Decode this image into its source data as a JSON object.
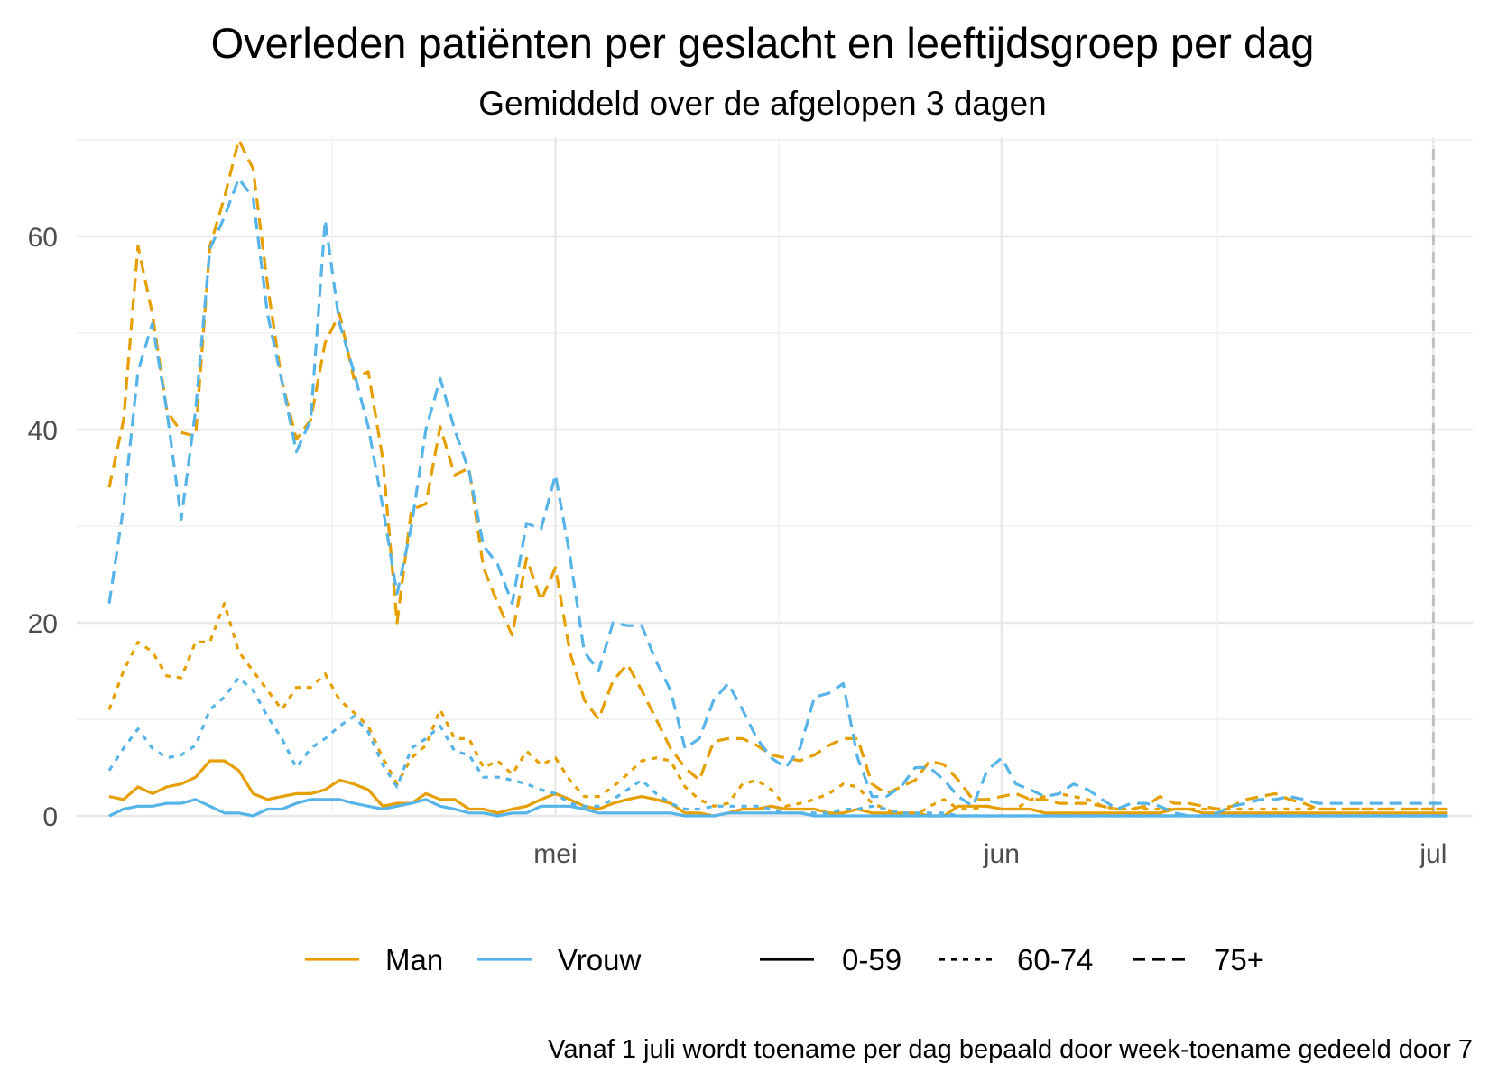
{
  "chart_data": {
    "type": "line",
    "title": "Overleden patiënten per geslacht en leeftijdsgroep per dag",
    "subtitle": "Gemiddeld over de afgelopen 3 dagen",
    "caption": "Vanaf 1 juli wordt toename per dag bepaald door week-toename gedeeld door 7",
    "x_start": "2020-03-31",
    "x_end": "2020-07-06",
    "x_ticks": [
      {
        "label": "mei",
        "date": "2020-05-01"
      },
      {
        "label": "jun",
        "date": "2020-06-01"
      },
      {
        "label": "jul",
        "date": "2020-07-01"
      }
    ],
    "y_ticks": [
      0,
      20,
      40,
      60
    ],
    "ylim": [
      0,
      70
    ],
    "vline": {
      "date": "2020-07-01",
      "color": "#c0c0c0"
    },
    "legend_sex": [
      {
        "label": "Man",
        "color": "#E69F00"
      },
      {
        "label": "Vrouw",
        "color": "#56B4E9"
      }
    ],
    "legend_age": [
      {
        "label": "0-59",
        "style": "solid"
      },
      {
        "label": "60-74",
        "style": "dotted"
      },
      {
        "label": "75+",
        "style": "dashed"
      }
    ],
    "series": [
      {
        "sex": "Man",
        "age": "0-59",
        "color": "#E69F00",
        "dash": "solid",
        "values": [
          2,
          1.7,
          3,
          2.3,
          3,
          3.3,
          4,
          5.7,
          5.7,
          4.7,
          2.3,
          1.7,
          2,
          2.3,
          2.3,
          2.7,
          3.7,
          3.3,
          2.7,
          1,
          1.3,
          1.3,
          2.3,
          1.7,
          1.7,
          0.7,
          0.7,
          0.3,
          0.7,
          1,
          1.7,
          2.3,
          1.7,
          1,
          0.7,
          1.3,
          1.7,
          2,
          1.7,
          1.3,
          0.3,
          0.3,
          0,
          0.3,
          0.7,
          0.7,
          1,
          0.7,
          0.7,
          0.7,
          0.3,
          0.3,
          0.7,
          0.3,
          0.3,
          0.3,
          0.3,
          0,
          0,
          1,
          1,
          1,
          0.7,
          0.7,
          0.7,
          0.3,
          0.3,
          0.3,
          0.3,
          0.3,
          0.3,
          0.3,
          0.3,
          0.3,
          0.7,
          0.7,
          0.3,
          0.3,
          0.3,
          0.3,
          0.3,
          0.3,
          0.3,
          0.3,
          0.3,
          0.3,
          0.3,
          0.3,
          0.3,
          0.3,
          0.3,
          0.3,
          0.3,
          0.3
        ]
      },
      {
        "sex": "Man",
        "age": "60-74",
        "color": "#E69F00",
        "dash": "dotted",
        "values": [
          11,
          15,
          18,
          17,
          14.5,
          14.3,
          18,
          18,
          22,
          17,
          15,
          13,
          11,
          13.3,
          13.3,
          14.7,
          12,
          10.7,
          9.3,
          6,
          3.3,
          6,
          7.3,
          11,
          8,
          8,
          5,
          5.7,
          4.3,
          6.7,
          5.3,
          6,
          3.7,
          2,
          2,
          3,
          4.3,
          5.7,
          6,
          5.7,
          3,
          1.7,
          1,
          1.3,
          3.3,
          3.7,
          2.7,
          1,
          1.3,
          1.7,
          2.3,
          3.3,
          3,
          1.3,
          0.7,
          0,
          0,
          1,
          1.7,
          0.7,
          0.7,
          1,
          0.7,
          0.7,
          1.7,
          2,
          2.3,
          2,
          1.7,
          1,
          0.7,
          0.7,
          0.7,
          0.7,
          0.7,
          0.7,
          0.7,
          0.7,
          0.7,
          0.7,
          0.7,
          0.7,
          0.7,
          0.7,
          0.7,
          0.7,
          0.7,
          0.7,
          0.7,
          0.7,
          0.7,
          0.7,
          0.7,
          0.7
        ]
      },
      {
        "sex": "Man",
        "age": "75+",
        "color": "#E69F00",
        "dash": "dashed",
        "values": [
          34,
          41,
          59,
          52,
          42,
          39.7,
          39.3,
          59,
          64,
          70,
          67,
          55,
          45,
          39,
          41,
          49,
          52,
          45.3,
          46,
          37,
          20,
          31.7,
          32.3,
          40.3,
          35.3,
          36,
          25.7,
          22,
          18.7,
          26.7,
          22.3,
          25.7,
          17,
          12,
          10,
          14,
          15.7,
          13,
          10,
          7,
          5,
          3.7,
          7.7,
          8,
          8,
          7.3,
          6.3,
          6,
          5.7,
          6.3,
          7.3,
          8,
          8,
          3.3,
          2.3,
          3,
          3.7,
          5.7,
          5.3,
          3.7,
          1.7,
          1.7,
          2,
          2.3,
          1.7,
          1.7,
          1.3,
          1.3,
          1.3,
          1,
          0.7,
          0.7,
          1,
          2,
          1.3,
          1.3,
          1,
          0.7,
          1,
          1.7,
          2,
          2.3,
          1.7,
          1.3,
          0.7,
          0.7,
          0.7,
          0.7,
          0.7,
          0.7,
          0.7,
          0.7,
          0.7,
          0.7
        ]
      },
      {
        "sex": "Vrouw",
        "age": "0-59",
        "color": "#56B4E9",
        "dash": "solid",
        "values": [
          0,
          0.7,
          1,
          1,
          1.3,
          1.3,
          1.7,
          1,
          0.3,
          0.3,
          0,
          0.7,
          0.7,
          1.3,
          1.7,
          1.7,
          1.7,
          1.3,
          1,
          0.7,
          1,
          1.3,
          1.7,
          1,
          0.7,
          0.3,
          0.3,
          0,
          0.3,
          0.3,
          1,
          1,
          1,
          0.7,
          0.3,
          0.3,
          0.3,
          0.3,
          0.3,
          0.3,
          0,
          0,
          0,
          0.3,
          0.3,
          0.3,
          0.3,
          0.3,
          0.3,
          0,
          0,
          0,
          0,
          0,
          0,
          0,
          0,
          0,
          0,
          0,
          0,
          0,
          0,
          0,
          0,
          0,
          0,
          0,
          0,
          0,
          0,
          0,
          0,
          0,
          0,
          0,
          0,
          0,
          0,
          0,
          0,
          0,
          0,
          0,
          0,
          0,
          0,
          0,
          0,
          0,
          0,
          0,
          0,
          0
        ]
      },
      {
        "sex": "Vrouw",
        "age": "60-74",
        "color": "#56B4E9",
        "dash": "dotted",
        "values": [
          4.7,
          7,
          9,
          7,
          6,
          6.3,
          7.3,
          11,
          12.3,
          14.3,
          13,
          10.3,
          8,
          5,
          7,
          8,
          9.3,
          10.3,
          8.7,
          5.3,
          3,
          7,
          8,
          9.3,
          6.7,
          6.3,
          4,
          4,
          3.7,
          3.3,
          2.7,
          2.3,
          1.3,
          1,
          1,
          1.7,
          2.7,
          3.7,
          2.3,
          1.3,
          0.7,
          0.7,
          1,
          1,
          1,
          1,
          0.7,
          0.3,
          0.3,
          0.3,
          0.3,
          0.7,
          0.7,
          1,
          0.7,
          0.3,
          0.3,
          0.3,
          0.3,
          0,
          0,
          0,
          0,
          0,
          0,
          0,
          0,
          0,
          0,
          0,
          0,
          0,
          0,
          0,
          0,
          0,
          0,
          0,
          0,
          0,
          0,
          0,
          0,
          0,
          0,
          0,
          0,
          0,
          0,
          0,
          0,
          0,
          0,
          0
        ]
      },
      {
        "sex": "Vrouw",
        "age": "75+",
        "color": "#56B4E9",
        "dash": "dashed",
        "values": [
          22,
          32,
          46,
          51,
          42,
          30.7,
          42,
          58.7,
          62,
          66,
          64,
          52,
          45,
          37.7,
          41,
          61.7,
          51,
          46,
          40.3,
          32,
          23,
          30,
          40,
          45.3,
          40,
          35.7,
          28,
          26,
          22,
          30.3,
          29.7,
          35.3,
          27,
          17,
          15,
          20,
          19.7,
          19.7,
          16,
          13,
          7,
          8,
          12,
          13.7,
          11,
          8,
          6,
          5,
          7,
          12.3,
          12.7,
          13.7,
          6,
          2,
          2,
          3,
          5,
          5,
          3.7,
          2,
          1,
          4.7,
          6,
          3.3,
          2.7,
          2,
          2.3,
          3.3,
          2.7,
          1.7,
          0.7,
          1.3,
          1.3,
          1,
          0.3,
          0,
          0,
          0.3,
          1,
          1.3,
          1.7,
          1.7,
          2,
          1.7,
          1.3,
          1.3,
          1.3,
          1.3,
          1.3,
          1.3,
          1.3,
          1.3,
          1.3,
          1.3
        ]
      }
    ]
  }
}
